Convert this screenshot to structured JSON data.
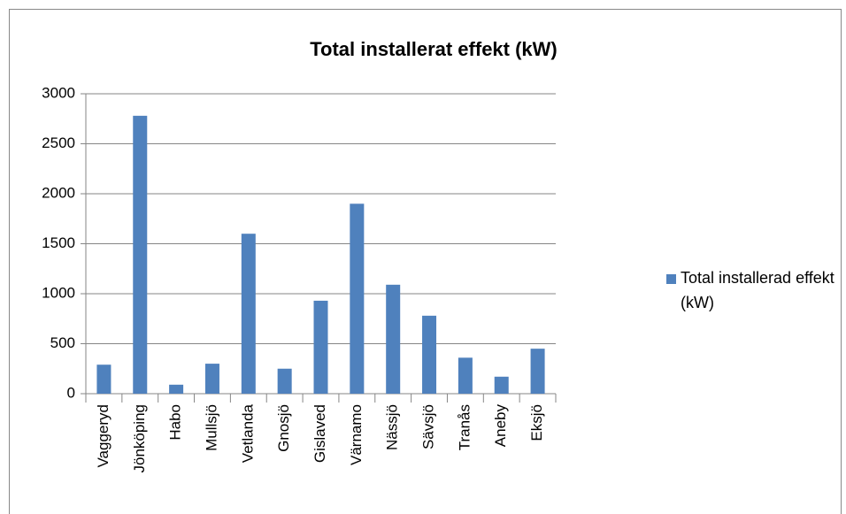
{
  "chart_data": {
    "type": "bar",
    "title": "Total installerat effekt (kW)",
    "categories": [
      "Vaggeryd",
      "Jönköping",
      "Habo",
      "Mullsjö",
      "Vetlanda",
      "Gnosjö",
      "Gislaved",
      "Värnamo",
      "Nässjö",
      "Sävsjö",
      "Tranås",
      "Aneby",
      "Eksjö"
    ],
    "series": [
      {
        "name": "Total installerad effekt (kW)",
        "color": "#4f81bd",
        "values": [
          290,
          2780,
          90,
          300,
          1600,
          250,
          930,
          1900,
          1090,
          780,
          360,
          170,
          450
        ]
      }
    ],
    "ylim": [
      0,
      3000
    ],
    "yticks": [
      0,
      500,
      1000,
      1500,
      2000,
      2500,
      3000
    ],
    "grid": true,
    "legend": "right"
  }
}
